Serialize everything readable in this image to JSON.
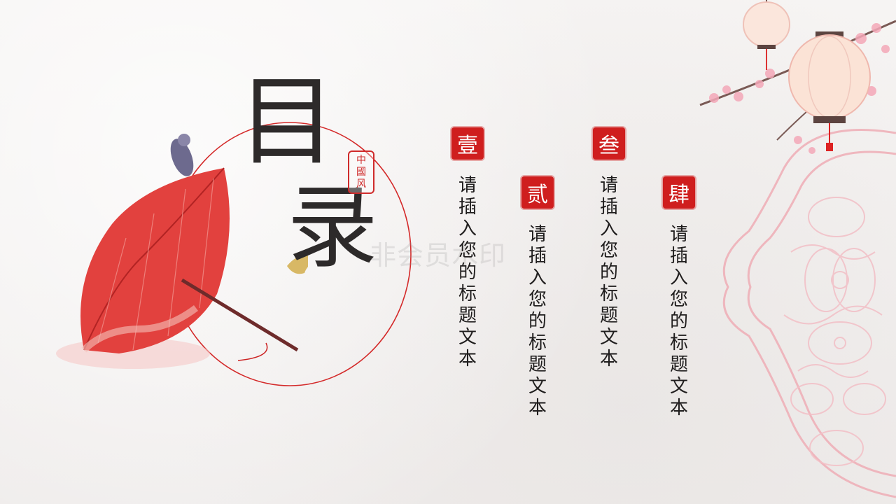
{
  "title": {
    "char1": "目",
    "char2": "录"
  },
  "small_seal": {
    "line1": "中",
    "line2": "國",
    "line3": "风"
  },
  "sections": [
    {
      "seal": "壹",
      "text": "请插入您的标题文本"
    },
    {
      "seal": "贰",
      "text": "请插入您的标题文本"
    },
    {
      "seal": "叁",
      "text": "请插入您的标题文本"
    },
    {
      "seal": "肆",
      "text": "请插入您的标题文本"
    }
  ],
  "watermark": "非会员水印",
  "colors": {
    "accent": "#cf1e1e",
    "text": "#2d2a2a",
    "lattice": "#f0b8bf",
    "background": "#f4f2f1"
  }
}
